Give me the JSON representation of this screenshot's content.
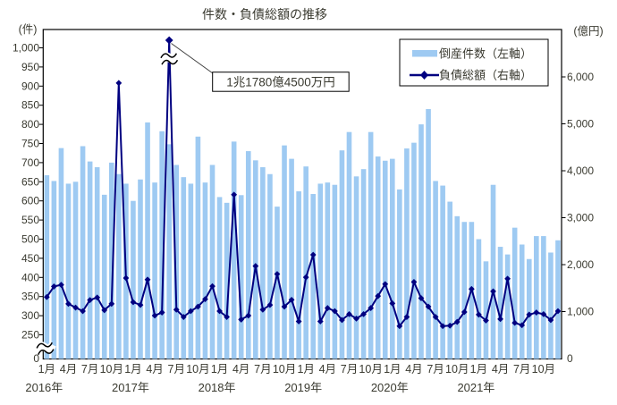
{
  "title": "件数・負債総額の推移",
  "colors": {
    "bar": "#9ECAF2",
    "line": "#000080",
    "axis": "#000000",
    "text": "#3a3a30",
    "annotation_leader": "#404040",
    "background": "#ffffff"
  },
  "left_axis": {
    "unit_label": "(件)",
    "tick_labels": [
      "1,000",
      "950",
      "900",
      "850",
      "800",
      "750",
      "700",
      "650",
      "600",
      "550",
      "500",
      "450",
      "400",
      "350",
      "300",
      "250"
    ],
    "tick_values": [
      1000,
      950,
      900,
      850,
      800,
      750,
      700,
      650,
      600,
      550,
      500,
      450,
      400,
      350,
      300,
      250
    ],
    "zero_label": "0",
    "has_axis_break": true
  },
  "right_axis": {
    "unit_label": "(億円)",
    "tick_labels": [
      "6,000",
      "5,000",
      "4,000",
      "3,000",
      "2,000",
      "1,000"
    ],
    "tick_values": [
      6000,
      5000,
      4000,
      3000,
      2000,
      1000
    ],
    "zero_label": "0"
  },
  "x_axis": {
    "month_tick_labels": [
      "1月",
      "4月",
      "7月",
      "10月"
    ],
    "month_tick_indices": [
      0,
      3,
      6,
      9
    ],
    "year_labels": [
      "2016年",
      "2017年",
      "2018年",
      "2019年",
      "2020年",
      "2021年"
    ]
  },
  "legend": {
    "items": [
      {
        "label": "倒産件数（左軸）",
        "marker": "bar-swatch"
      },
      {
        "label": "負債総額（右軸）",
        "marker": "line-diamond"
      }
    ]
  },
  "annotation": {
    "text": "1兆1780億4500万円",
    "points_to_month": "2017-06"
  },
  "chart_data": {
    "type": "bar+line",
    "frequency": "monthly",
    "start": "2016-01",
    "end": "2021-12",
    "left_axis_range": {
      "min": 0,
      "max": 1000,
      "tick_step": 50,
      "break_between": [
        0,
        250
      ]
    },
    "right_axis_range": {
      "min": 0,
      "max_labeled": 6000,
      "tick_step": 1000
    },
    "grid": false,
    "legend_position": "top-right-inside",
    "series": [
      {
        "name": "倒産件数（左軸）",
        "type": "bar",
        "axis": "left",
        "unit": "件",
        "values": [
          667,
          652,
          738,
          645,
          650,
          743,
          703,
          688,
          616,
          700,
          670,
          645,
          600,
          656,
          805,
          648,
          782,
          748,
          694,
          662,
          645,
          768,
          648,
          694,
          610,
          595,
          755,
          615,
          730,
          706,
          688,
          670,
          585,
          745,
          710,
          625,
          690,
          618,
          645,
          648,
          642,
          732,
          780,
          664,
          683,
          780,
          716,
          705,
          710,
          630,
          737,
          752,
          800,
          840,
          652,
          640,
          598,
          560,
          545,
          545,
          500,
          442,
          642,
          480,
          460,
          530,
          486,
          448,
          508,
          508,
          465,
          497
        ]
      },
      {
        "name": "負債総額（右軸）",
        "type": "line",
        "axis": "right",
        "unit": "億円",
        "values": [
          1310,
          1535,
          1570,
          1165,
          1085,
          1010,
          1245,
          1300,
          1030,
          1165,
          5870,
          1715,
          1200,
          1140,
          1680,
          915,
          980,
          11780,
          1040,
          885,
          1010,
          1105,
          1265,
          1540,
          1010,
          885,
          3490,
          830,
          915,
          1970,
          1040,
          1140,
          1800,
          1105,
          1250,
          790,
          1730,
          2210,
          790,
          1075,
          1010,
          820,
          945,
          850,
          945,
          1075,
          1330,
          1585,
          1175,
          690,
          885,
          1630,
          1285,
          1105,
          885,
          690,
          700,
          780,
          990,
          1480,
          935,
          810,
          1430,
          840,
          1700,
          760,
          710,
          935,
          980,
          945,
          820,
          1010
        ],
        "off_scale_point": {
          "index": 17,
          "month": "2017-06",
          "value": 11780,
          "note": "1兆1780億4500万円",
          "drawn_with_axis_break": true
        }
      }
    ]
  }
}
